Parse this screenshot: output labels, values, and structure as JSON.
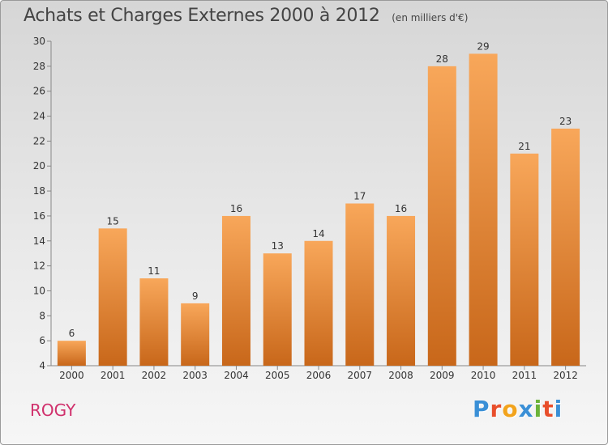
{
  "chart_data": {
    "type": "bar",
    "title": "Achats et Charges Externes 2000 à 2012",
    "subtitle": "(en milliers d'€)",
    "categories": [
      "2000",
      "2001",
      "2002",
      "2003",
      "2004",
      "2005",
      "2006",
      "2007",
      "2008",
      "2009",
      "2010",
      "2011",
      "2012"
    ],
    "values": [
      6,
      15,
      11,
      9,
      16,
      13,
      14,
      17,
      16,
      28,
      29,
      21,
      23
    ],
    "ylim": [
      4,
      30
    ],
    "yticks": [
      4,
      6,
      8,
      10,
      12,
      14,
      16,
      18,
      20,
      22,
      24,
      26,
      28,
      30
    ],
    "xlabel": "",
    "ylabel": "",
    "grid": false,
    "legend": "none",
    "colors": {
      "bar_light": "#f8a75a",
      "bar_dark": "#c8671a",
      "axis": "#888888"
    }
  },
  "commune": "ROGY",
  "brand": {
    "letters": [
      "P",
      "r",
      "o",
      "x",
      "i",
      "t",
      "i"
    ],
    "colors": [
      "#3a8fd6",
      "#e84e2b",
      "#f2a31c",
      "#3a8fd6",
      "#6bb33a",
      "#e84e2b",
      "#3a8fd6"
    ]
  }
}
